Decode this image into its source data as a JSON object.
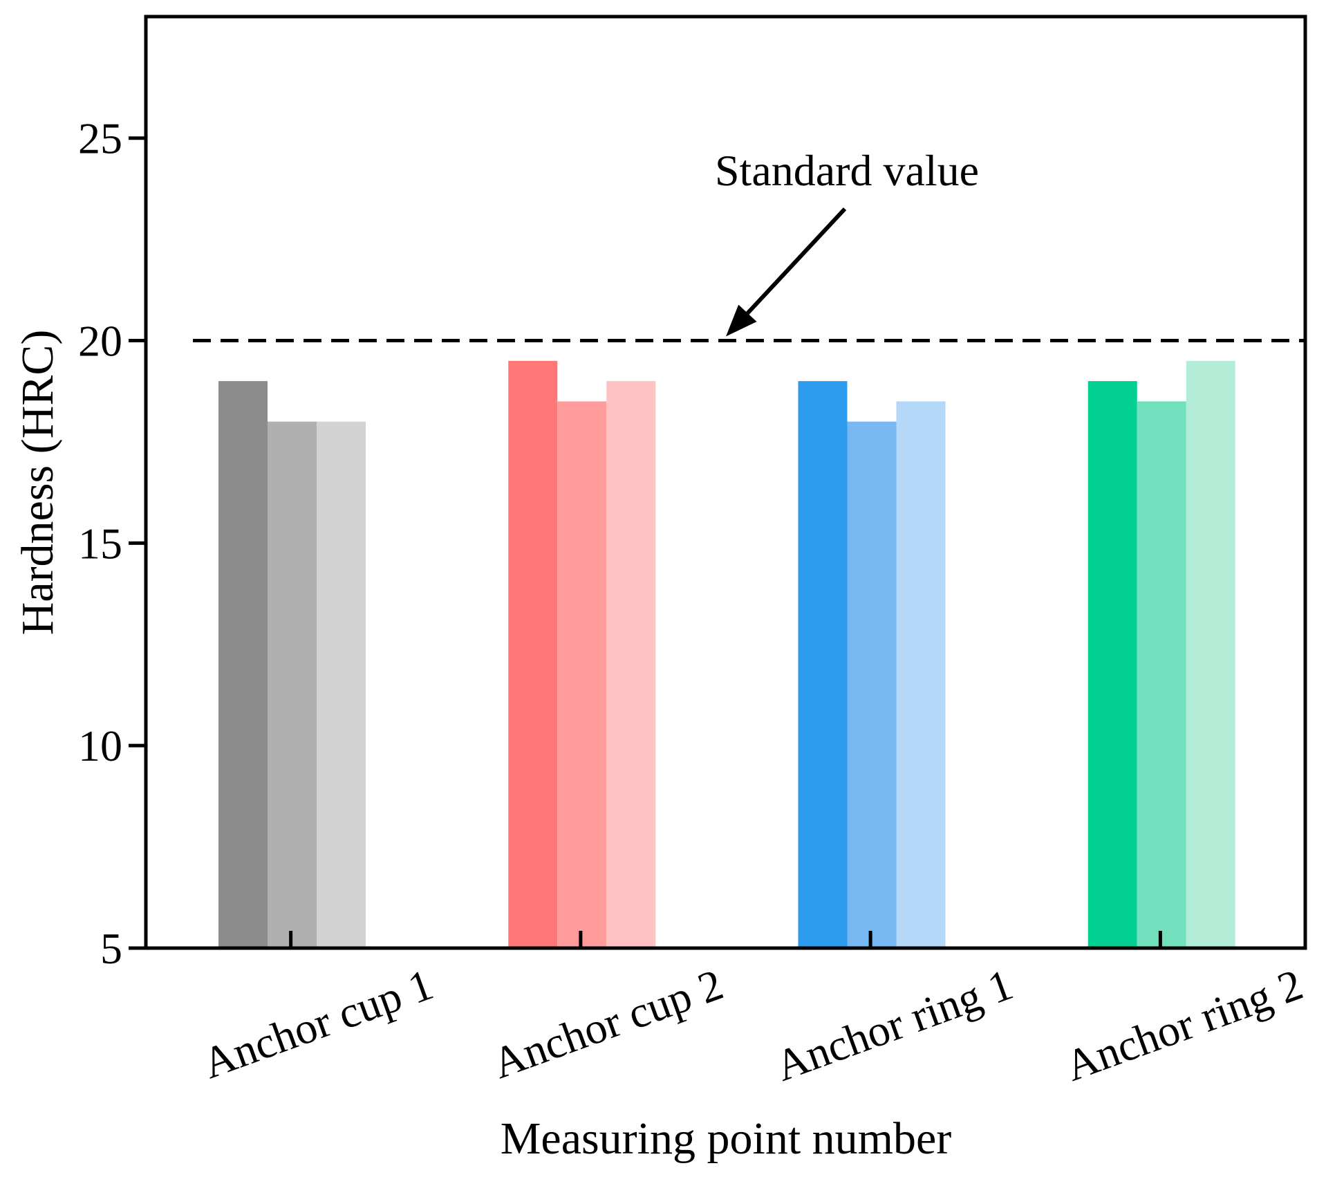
{
  "chart_data": {
    "type": "bar",
    "title": "",
    "xlabel": "Measuring point number",
    "ylabel": "Hardness (HRC)",
    "ylim": [
      5,
      28
    ],
    "yticks": [
      5,
      10,
      15,
      20,
      25
    ],
    "grid": false,
    "categories": [
      "Anchor cup 1",
      "Anchor cup 2",
      "Anchor ring 1",
      "Anchor ring 2"
    ],
    "values": [
      [
        19.0,
        18.0,
        18.0
      ],
      [
        19.5,
        18.5,
        19.0
      ],
      [
        19.0,
        18.0,
        18.5
      ],
      [
        19.0,
        18.5,
        19.5
      ]
    ],
    "colors": [
      [
        "#8c8c8c",
        "#b0b0b0",
        "#d3d3d3"
      ],
      [
        "#ff7777",
        "#ff9b9b",
        "#ffc2c2"
      ],
      [
        "#2e9cee",
        "#78b8f2",
        "#b5d7f8"
      ],
      [
        "#02d093",
        "#72e0bd",
        "#b3edd7"
      ]
    ],
    "reference_line": {
      "value": 20,
      "style": "dashed",
      "annotation": "Standard value"
    }
  }
}
